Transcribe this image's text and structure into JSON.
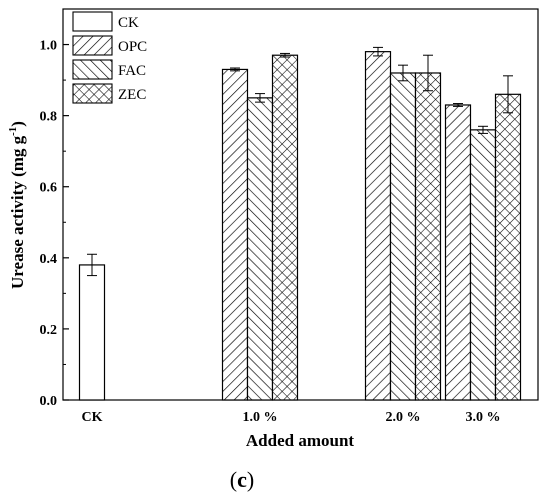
{
  "panel_label": {
    "open": "(",
    "letter": "c",
    "close": ")"
  },
  "chart_data": {
    "type": "bar",
    "title": "",
    "xlabel": "Added amount",
    "ylabel_parts": {
      "main": "Urease activity (mg g",
      "sup": "-1",
      "end": ")"
    },
    "ylim": [
      0,
      1.1
    ],
    "yticks": [
      "0.0",
      "0.2",
      "0.4",
      "0.6",
      "0.8",
      "1.0"
    ],
    "grid": false,
    "legend_position": "top-left",
    "categories": [
      "CK",
      "1.0 %",
      "2.0 %",
      "3.0 %"
    ],
    "series": [
      {
        "name": "CK",
        "pattern": "none",
        "values": [
          0.38,
          null,
          null,
          null
        ],
        "errors": [
          0.03,
          null,
          null,
          null
        ]
      },
      {
        "name": "OPC",
        "pattern": "diag-right",
        "values": [
          null,
          0.93,
          0.98,
          0.83
        ],
        "errors": [
          null,
          0.004,
          0.012,
          0.004
        ]
      },
      {
        "name": "FAC",
        "pattern": "diag-left",
        "values": [
          null,
          0.85,
          0.92,
          0.76
        ],
        "errors": [
          null,
          0.012,
          0.022,
          0.01
        ]
      },
      {
        "name": "ZEC",
        "pattern": "cross",
        "values": [
          null,
          0.97,
          0.92,
          0.86
        ],
        "errors": [
          null,
          0.005,
          0.05,
          0.052
        ]
      }
    ]
  }
}
